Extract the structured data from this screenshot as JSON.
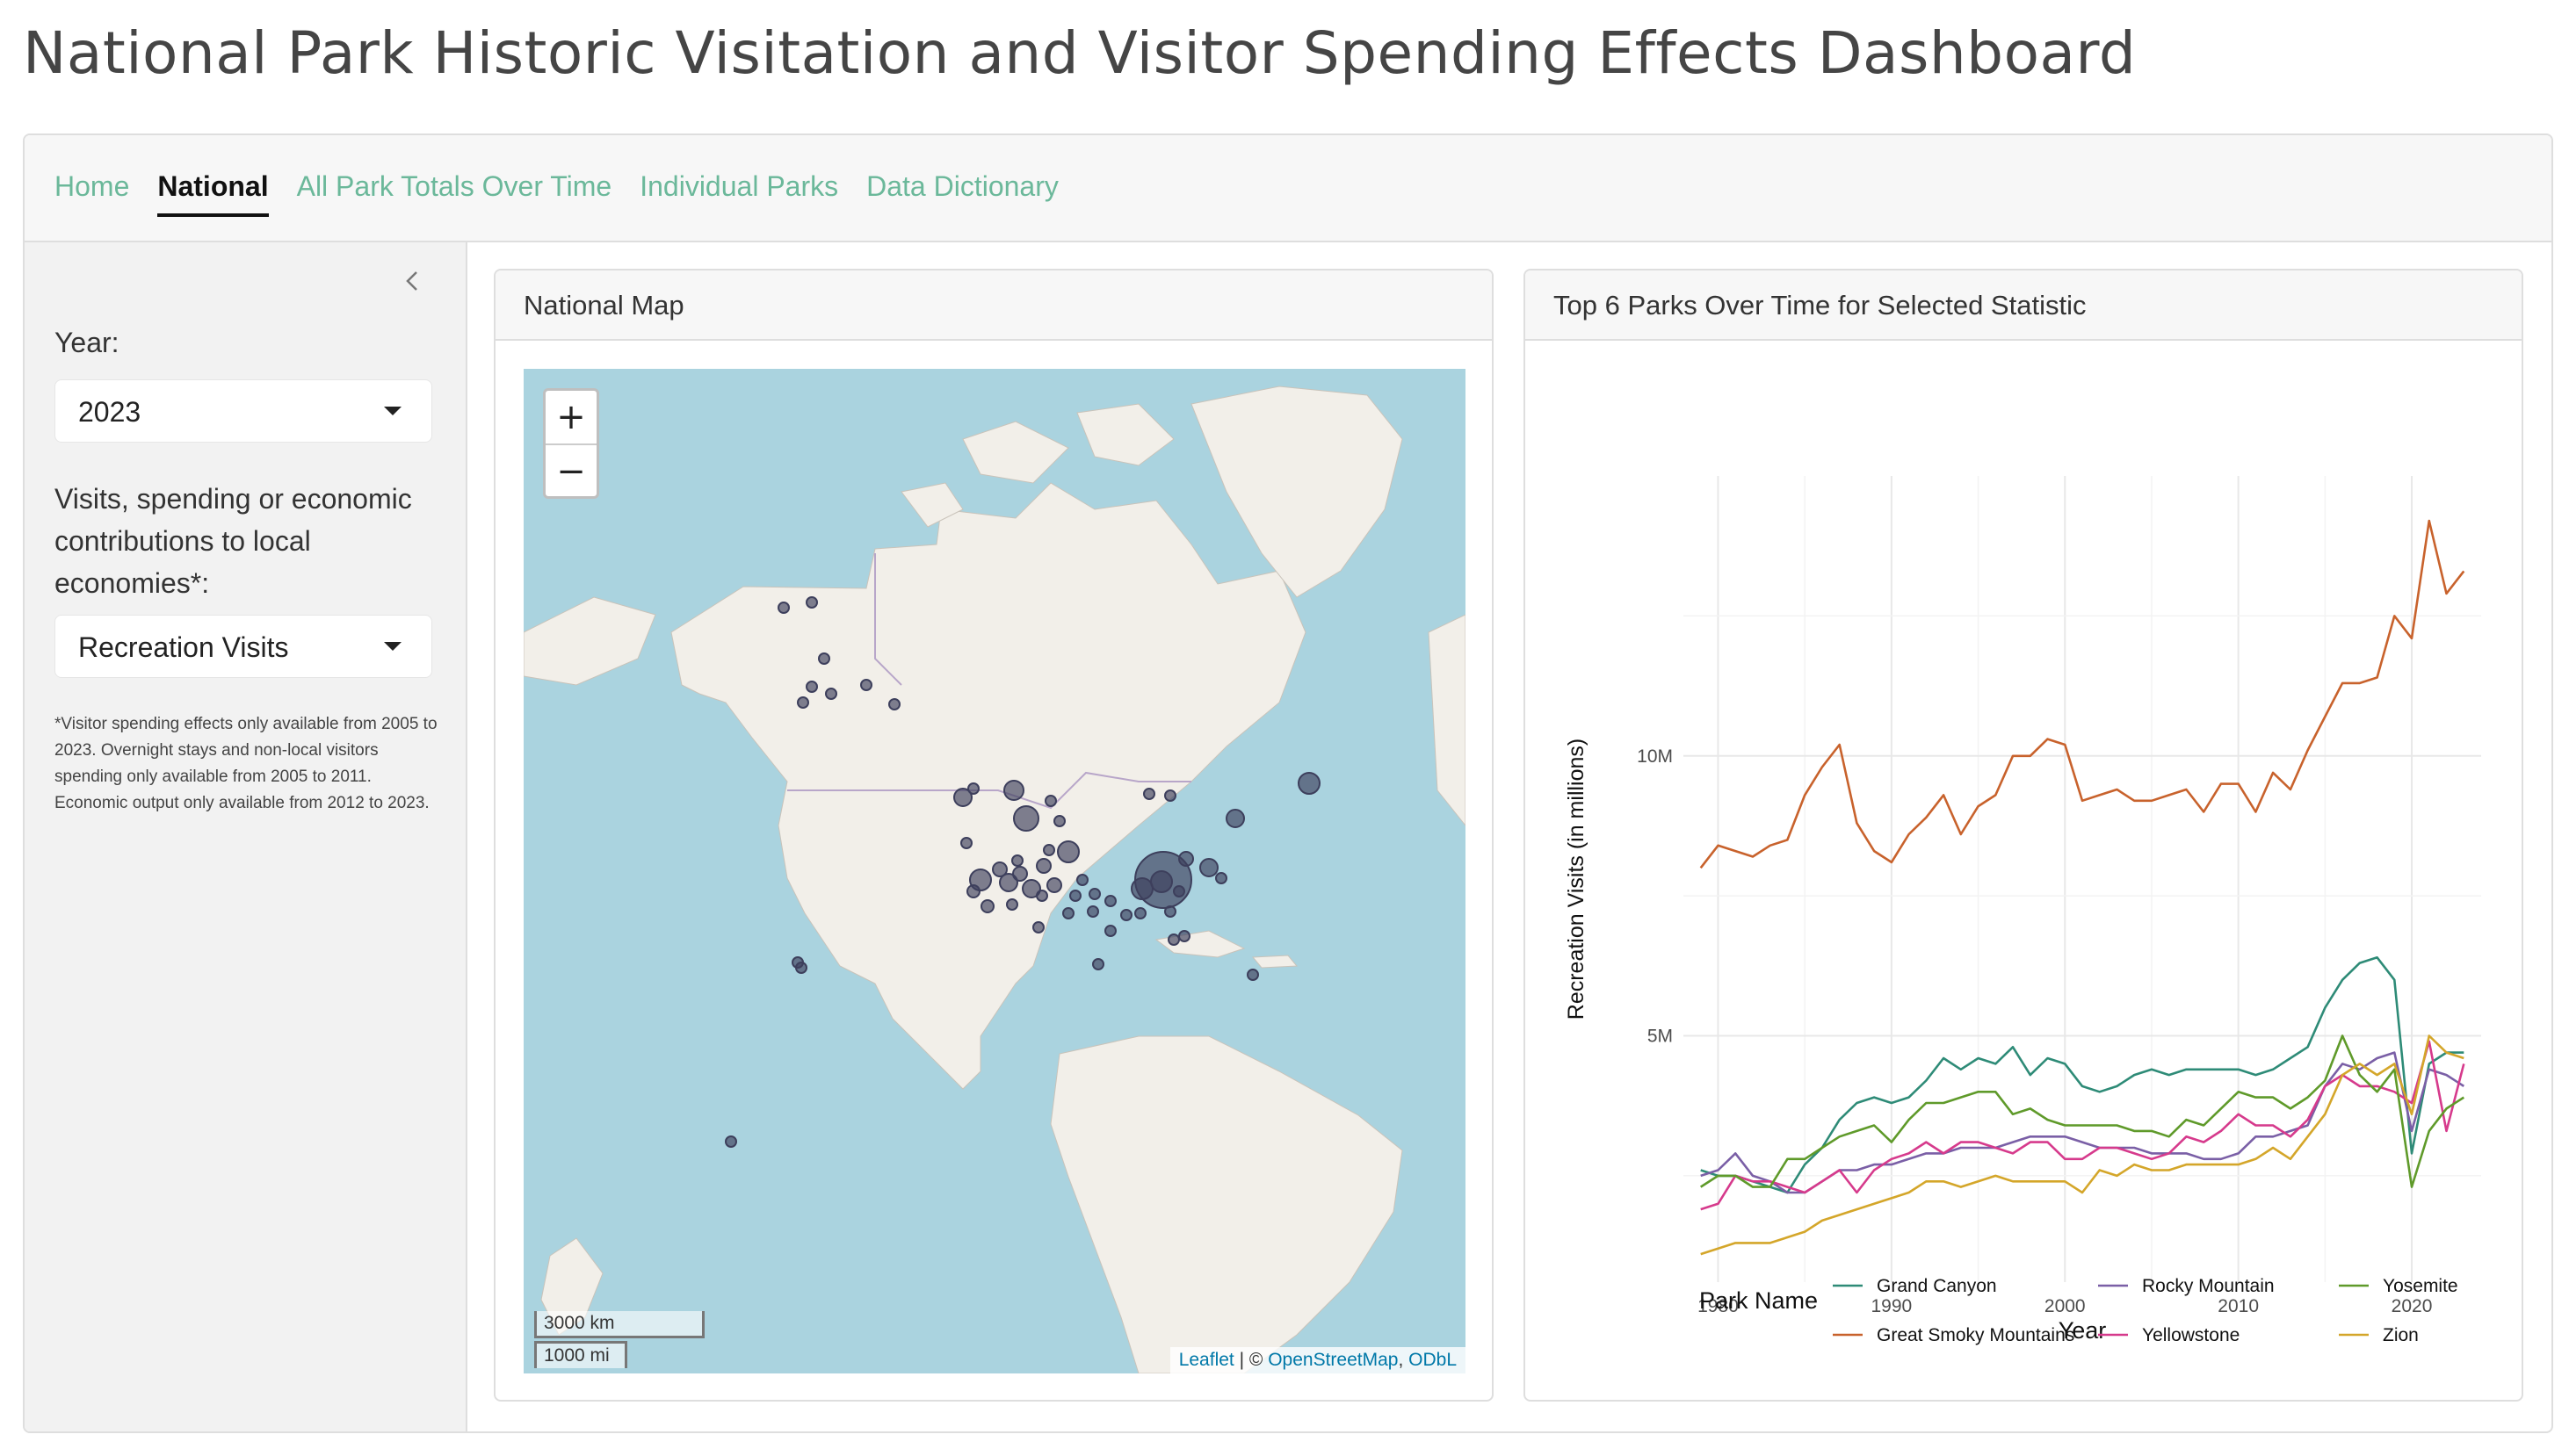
{
  "page": {
    "title": "National Park Historic Visitation and Visitor Spending Effects Dashboard"
  },
  "nav": {
    "tabs": [
      {
        "label": "Home",
        "active": false
      },
      {
        "label": "National",
        "active": true
      },
      {
        "label": "All Park Totals Over Time",
        "active": false
      },
      {
        "label": "Individual Parks",
        "active": false
      },
      {
        "label": "Data Dictionary",
        "active": false
      }
    ]
  },
  "sidebar": {
    "year_label": "Year:",
    "year_value": "2023",
    "stat_label": "Visits, spending or economic contributions to local economies*:",
    "stat_value": "Recreation Visits",
    "footnote": "*Visitor spending effects only available from 2005 to 2023. Overnight stays and non-local visitors spending only available from 2005 to 2011. Economic output only available from 2012 to 2023."
  },
  "map": {
    "title": "National Map",
    "zoom_in": "+",
    "zoom_out": "−",
    "scale_km": "3000 km",
    "scale_mi": "1000 mi",
    "attribution": {
      "leaflet": "Leaflet",
      "sep": " | © ",
      "osm": "OpenStreetMap",
      "comma": ", ",
      "odbl": "ODbL"
    }
  },
  "chart_card": {
    "title": "Top 6 Parks Over Time for Selected Statistic"
  },
  "colors": {
    "accent": "#6bb89a",
    "marker": "#3d3f5c",
    "water": "#aad3df",
    "land": "#f2efe9"
  },
  "chart_data": {
    "type": "line",
    "xlabel": "Year",
    "ylabel": "Recreation Visits (in millions)",
    "x_ticks": [
      1980,
      1990,
      2000,
      2010,
      2020
    ],
    "y_ticks": [
      {
        "value": 5000000,
        "label": "5M"
      },
      {
        "value": 10000000,
        "label": "10M"
      }
    ],
    "xlim": [
      1978,
      2024
    ],
    "ylim": [
      600000,
      15000000
    ],
    "legend_title": "Park Name",
    "legend_position": "bottom",
    "x": [
      1979,
      1980,
      1981,
      1982,
      1983,
      1984,
      1985,
      1986,
      1987,
      1988,
      1989,
      1990,
      1991,
      1992,
      1993,
      1994,
      1995,
      1996,
      1997,
      1998,
      1999,
      2000,
      2001,
      2002,
      2003,
      2004,
      2005,
      2006,
      2007,
      2008,
      2009,
      2010,
      2011,
      2012,
      2013,
      2014,
      2015,
      2016,
      2017,
      2018,
      2019,
      2020,
      2021,
      2022,
      2023
    ],
    "series": [
      {
        "name": "Grand Canyon",
        "color": "#2e8b77",
        "values": [
          2.6,
          2.5,
          2.5,
          2.4,
          2.3,
          2.2,
          2.7,
          3.0,
          3.5,
          3.8,
          3.9,
          3.8,
          3.9,
          4.2,
          4.6,
          4.4,
          4.6,
          4.5,
          4.8,
          4.3,
          4.6,
          4.5,
          4.1,
          4.0,
          4.1,
          4.3,
          4.4,
          4.3,
          4.4,
          4.4,
          4.4,
          4.4,
          4.3,
          4.4,
          4.6,
          4.8,
          5.5,
          6.0,
          6.3,
          6.4,
          6.0,
          2.9,
          4.5,
          4.7,
          4.7
        ]
      },
      {
        "name": "Great Smoky Mountains",
        "color": "#c8622c",
        "values": [
          8.0,
          8.4,
          8.3,
          8.2,
          8.4,
          8.5,
          9.3,
          9.8,
          10.2,
          8.8,
          8.3,
          8.1,
          8.6,
          8.9,
          9.3,
          8.6,
          9.1,
          9.3,
          10.0,
          10.0,
          10.3,
          10.2,
          9.2,
          9.3,
          9.4,
          9.2,
          9.2,
          9.3,
          9.4,
          9.0,
          9.5,
          9.5,
          9.0,
          9.7,
          9.4,
          10.1,
          10.7,
          11.3,
          11.3,
          11.4,
          12.5,
          12.1,
          14.2,
          12.9,
          13.3
        ]
      },
      {
        "name": "Rocky Mountain",
        "color": "#7a5fa6",
        "values": [
          2.5,
          2.6,
          2.9,
          2.5,
          2.4,
          2.2,
          2.2,
          2.4,
          2.6,
          2.6,
          2.7,
          2.7,
          2.8,
          2.9,
          2.9,
          3.0,
          3.0,
          3.0,
          3.1,
          3.2,
          3.2,
          3.2,
          3.1,
          3.0,
          3.0,
          3.0,
          2.9,
          2.9,
          2.9,
          2.8,
          2.8,
          2.9,
          3.2,
          3.2,
          3.3,
          3.4,
          4.1,
          4.5,
          4.4,
          4.6,
          4.7,
          3.3,
          4.4,
          4.3,
          4.1
        ]
      },
      {
        "name": "Yellowstone",
        "color": "#d63a8c",
        "values": [
          1.9,
          2.0,
          2.5,
          2.4,
          2.4,
          2.3,
          2.2,
          2.4,
          2.6,
          2.2,
          2.6,
          2.8,
          2.9,
          3.1,
          2.9,
          3.1,
          3.1,
          3.0,
          2.9,
          3.1,
          3.1,
          2.8,
          2.8,
          3.0,
          3.0,
          2.9,
          2.8,
          2.9,
          3.2,
          3.1,
          3.3,
          3.6,
          3.4,
          3.4,
          3.2,
          3.5,
          4.1,
          4.3,
          4.1,
          4.1,
          4.0,
          3.8,
          4.9,
          3.3,
          4.5
        ]
      },
      {
        "name": "Yosemite",
        "color": "#5f9a2a",
        "values": [
          2.3,
          2.5,
          2.5,
          2.3,
          2.3,
          2.8,
          2.8,
          3.0,
          3.2,
          3.3,
          3.4,
          3.1,
          3.5,
          3.8,
          3.8,
          3.9,
          4.0,
          4.0,
          3.6,
          3.7,
          3.5,
          3.4,
          3.4,
          3.4,
          3.4,
          3.3,
          3.3,
          3.2,
          3.5,
          3.4,
          3.7,
          4.0,
          3.9,
          3.9,
          3.7,
          3.9,
          4.2,
          5.0,
          4.3,
          4.0,
          4.4,
          2.3,
          3.3,
          3.7,
          3.9
        ]
      },
      {
        "name": "Zion",
        "color": "#d4a62a",
        "values": [
          1.1,
          1.2,
          1.3,
          1.3,
          1.3,
          1.4,
          1.5,
          1.7,
          1.8,
          1.9,
          2.0,
          2.1,
          2.2,
          2.4,
          2.4,
          2.3,
          2.4,
          2.5,
          2.4,
          2.4,
          2.4,
          2.4,
          2.2,
          2.6,
          2.5,
          2.7,
          2.6,
          2.6,
          2.7,
          2.7,
          2.7,
          2.7,
          2.8,
          3.0,
          2.8,
          3.2,
          3.6,
          4.3,
          4.5,
          4.3,
          4.5,
          3.6,
          5.0,
          4.7,
          4.6
        ]
      }
    ]
  }
}
